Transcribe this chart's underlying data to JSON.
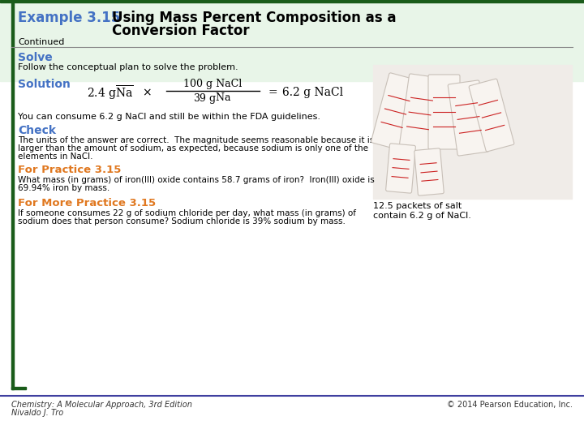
{
  "background_color": "#ffffff",
  "border_color": "#1a5c1a",
  "header_bg": "#e8f5e8",
  "title_prefix": "Example 3.15",
  "title_prefix_color": "#4472c4",
  "title_text": "Using Mass Percent Composition as a",
  "title_text2": "Conversion Factor",
  "title_color": "#000000",
  "continued_text": "Continued",
  "solve_label": "Solve",
  "solve_color": "#4472c4",
  "solve_body": "Follow the conceptual plan to solve the problem.",
  "solution_label": "Solution",
  "solution_color": "#4472c4",
  "fda_text": "You can consume 6.2 g NaCl and still be within the FDA guidelines.",
  "check_label": "Check",
  "check_color": "#4472c4",
  "check_body1": "The units of the answer are correct.  The magnitude seems reasonable because it is",
  "check_body2": "larger than the amount of sodium, as expected, because sodium is only one of the",
  "check_body3": "elements in NaCl.",
  "practice_label": "For Practice 3.15",
  "practice_color": "#e07820",
  "practice_body1": "What mass (in grams) of iron(III) oxide contains 58.7 grams of iron?  Iron(III) oxide is",
  "practice_body2": "69.94% iron by mass.",
  "more_practice_label": "For More Practice 3.15",
  "more_practice_color": "#e07820",
  "more_practice_body1": "If someone consumes 22 g of sodium chloride per day, what mass (in grams) of",
  "more_practice_body2": "sodium does that person consume? Sodium chloride is 39% sodium by mass.",
  "caption_line1": "12.5 packets of salt",
  "caption_line2": "contain 6.2 g of NaCl.",
  "footer_left1": "Chemistry: A Molecular Approach, 3rd Edition",
  "footer_left2": "Nivaldo J. Tro",
  "footer_right": "© 2014 Pearson Education, Inc.",
  "divider_color": "#888888",
  "body_color": "#000000",
  "footer_color": "#333333",
  "footer_line_color": "#4040a0"
}
